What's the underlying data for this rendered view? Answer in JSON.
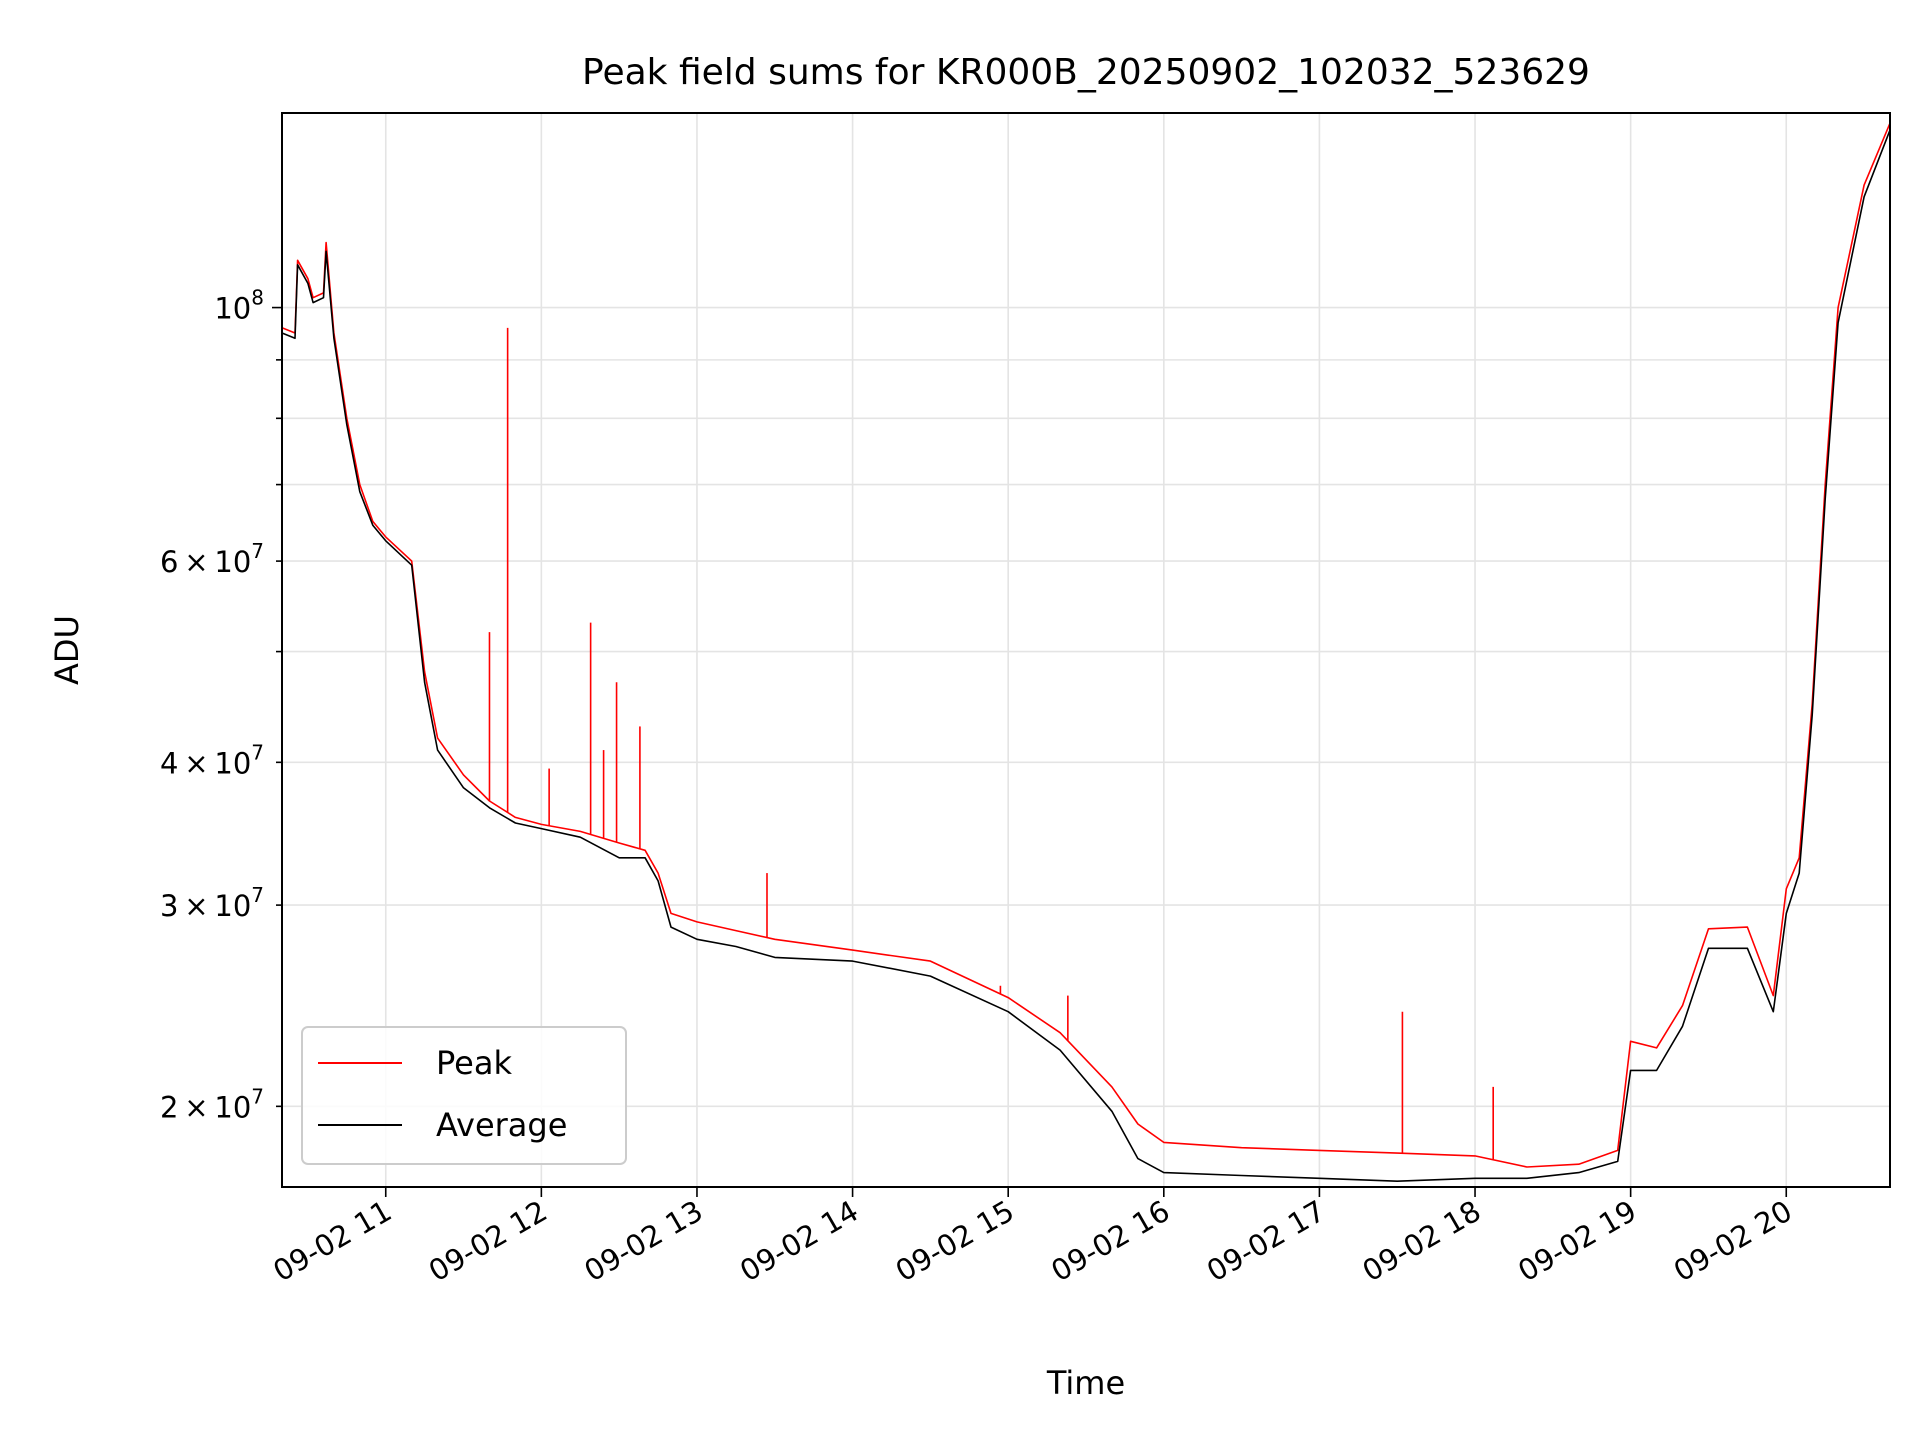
{
  "chart_data": {
    "type": "line",
    "title": "Peak field sums for KR000B_20250902_102032_523629",
    "xlabel": "Time",
    "ylabel": "ADU",
    "y_scale": "log",
    "ylim": [
      17000000,
      148000000
    ],
    "xlim": [
      "2025-09-02 10:20",
      "2025-09-02 20:40"
    ],
    "grid": true,
    "legend_position": "lower-left",
    "x_ticks": [
      {
        "t": "2025-09-02 11:00",
        "label": "09-02 11"
      },
      {
        "t": "2025-09-02 12:00",
        "label": "09-02 12"
      },
      {
        "t": "2025-09-02 13:00",
        "label": "09-02 13"
      },
      {
        "t": "2025-09-02 14:00",
        "label": "09-02 14"
      },
      {
        "t": "2025-09-02 15:00",
        "label": "09-02 15"
      },
      {
        "t": "2025-09-02 16:00",
        "label": "09-02 16"
      },
      {
        "t": "2025-09-02 17:00",
        "label": "09-02 17"
      },
      {
        "t": "2025-09-02 18:00",
        "label": "09-02 18"
      },
      {
        "t": "2025-09-02 19:00",
        "label": "09-02 19"
      },
      {
        "t": "2025-09-02 20:00",
        "label": "09-02 20"
      }
    ],
    "y_major_ticks": [
      {
        "value": 100000000,
        "mantissa": "",
        "exp": "8"
      }
    ],
    "y_minor_ticks": [
      {
        "value": 20000000,
        "mantissa": "2",
        "exp": "7"
      },
      {
        "value": 30000000,
        "mantissa": "3",
        "exp": "7"
      },
      {
        "value": 40000000,
        "mantissa": "4",
        "exp": "7"
      },
      {
        "value": 50000000,
        "mantissa": "",
        "exp": ""
      },
      {
        "value": 60000000,
        "mantissa": "6",
        "exp": "7"
      },
      {
        "value": 70000000,
        "mantissa": "",
        "exp": ""
      },
      {
        "value": 80000000,
        "mantissa": "",
        "exp": ""
      },
      {
        "value": 90000000,
        "mantissa": "",
        "exp": ""
      }
    ],
    "series": [
      {
        "name": "Peak",
        "color": "#ff0000",
        "x": [
          "2025-09-02 10:20",
          "2025-09-02 10:25",
          "2025-09-02 10:26",
          "2025-09-02 10:30",
          "2025-09-02 10:32",
          "2025-09-02 10:36",
          "2025-09-02 10:37",
          "2025-09-02 10:40",
          "2025-09-02 10:45",
          "2025-09-02 10:50",
          "2025-09-02 10:55",
          "2025-09-02 11:00",
          "2025-09-02 11:10",
          "2025-09-02 11:15",
          "2025-09-02 11:20",
          "2025-09-02 11:30",
          "2025-09-02 11:40",
          "2025-09-02 11:50",
          "2025-09-02 12:00",
          "2025-09-02 12:15",
          "2025-09-02 12:30",
          "2025-09-02 12:40",
          "2025-09-02 12:45",
          "2025-09-02 12:50",
          "2025-09-02 13:00",
          "2025-09-02 13:15",
          "2025-09-02 13:30",
          "2025-09-02 14:00",
          "2025-09-02 14:30",
          "2025-09-02 15:00",
          "2025-09-02 15:20",
          "2025-09-02 15:40",
          "2025-09-02 15:50",
          "2025-09-02 16:00",
          "2025-09-02 16:30",
          "2025-09-02 17:00",
          "2025-09-02 17:30",
          "2025-09-02 18:00",
          "2025-09-02 18:20",
          "2025-09-02 18:40",
          "2025-09-02 18:55",
          "2025-09-02 19:00",
          "2025-09-02 19:10",
          "2025-09-02 19:20",
          "2025-09-02 19:30",
          "2025-09-02 19:45",
          "2025-09-02 19:55",
          "2025-09-02 20:00",
          "2025-09-02 20:05",
          "2025-09-02 20:10",
          "2025-09-02 20:15",
          "2025-09-02 20:20",
          "2025-09-02 20:30",
          "2025-09-02 20:40"
        ],
        "y": [
          96000000,
          95000000,
          110000000,
          106000000,
          102000000,
          103000000,
          114000000,
          95000000,
          80000000,
          70000000,
          65000000,
          63000000,
          60000000,
          48000000,
          42000000,
          39000000,
          37000000,
          35800000,
          35300000,
          34800000,
          34000000,
          33500000,
          32000000,
          29500000,
          29000000,
          28500000,
          28000000,
          27400000,
          26800000,
          24900000,
          23200000,
          20800000,
          19300000,
          18600000,
          18400000,
          18300000,
          18200000,
          18100000,
          17700000,
          17800000,
          18300000,
          22800000,
          22500000,
          24500000,
          28600000,
          28700000,
          25000000,
          31000000,
          33000000,
          45000000,
          70000000,
          100000000,
          128000000,
          145000000
        ]
      },
      {
        "name": "Average",
        "color": "#000000",
        "x": [
          "2025-09-02 10:20",
          "2025-09-02 10:25",
          "2025-09-02 10:26",
          "2025-09-02 10:30",
          "2025-09-02 10:32",
          "2025-09-02 10:36",
          "2025-09-02 10:37",
          "2025-09-02 10:40",
          "2025-09-02 10:45",
          "2025-09-02 10:50",
          "2025-09-02 10:55",
          "2025-09-02 11:00",
          "2025-09-02 11:10",
          "2025-09-02 11:15",
          "2025-09-02 11:20",
          "2025-09-02 11:30",
          "2025-09-02 11:40",
          "2025-09-02 11:50",
          "2025-09-02 12:00",
          "2025-09-02 12:15",
          "2025-09-02 12:30",
          "2025-09-02 12:40",
          "2025-09-02 12:45",
          "2025-09-02 12:50",
          "2025-09-02 13:00",
          "2025-09-02 13:15",
          "2025-09-02 13:30",
          "2025-09-02 14:00",
          "2025-09-02 14:30",
          "2025-09-02 15:00",
          "2025-09-02 15:20",
          "2025-09-02 15:40",
          "2025-09-02 15:50",
          "2025-09-02 16:00",
          "2025-09-02 16:30",
          "2025-09-02 17:00",
          "2025-09-02 17:30",
          "2025-09-02 18:00",
          "2025-09-02 18:20",
          "2025-09-02 18:40",
          "2025-09-02 18:55",
          "2025-09-02 19:00",
          "2025-09-02 19:10",
          "2025-09-02 19:20",
          "2025-09-02 19:30",
          "2025-09-02 19:45",
          "2025-09-02 19:55",
          "2025-09-02 20:00",
          "2025-09-02 20:05",
          "2025-09-02 20:10",
          "2025-09-02 20:15",
          "2025-09-02 20:20",
          "2025-09-02 20:30",
          "2025-09-02 20:40"
        ],
        "y": [
          95000000,
          94000000,
          109000000,
          105000000,
          101000000,
          102000000,
          112000000,
          94000000,
          79000000,
          69000000,
          64500000,
          62500000,
          59500000,
          47000000,
          41000000,
          38000000,
          36500000,
          35400000,
          35000000,
          34400000,
          33000000,
          33000000,
          31500000,
          28700000,
          28000000,
          27600000,
          27000000,
          26800000,
          26000000,
          24200000,
          22400000,
          19800000,
          18000000,
          17500000,
          17400000,
          17300000,
          17200000,
          17300000,
          17300000,
          17500000,
          17900000,
          21500000,
          21500000,
          23500000,
          27500000,
          27500000,
          24200000,
          29500000,
          32000000,
          44000000,
          68000000,
          97000000,
          125000000,
          143000000
        ]
      }
    ],
    "spikes": {
      "series": "Peak",
      "x": [
        "2025-09-02 11:40",
        "2025-09-02 11:47",
        "2025-09-02 12:03",
        "2025-09-02 12:19",
        "2025-09-02 12:24",
        "2025-09-02 12:29",
        "2025-09-02 12:38",
        "2025-09-02 13:27",
        "2025-09-02 14:57",
        "2025-09-02 15:23",
        "2025-09-02 17:32",
        "2025-09-02 18:07"
      ],
      "y": [
        52000000,
        96000000,
        39500000,
        53000000,
        41000000,
        47000000,
        43000000,
        32000000,
        25500000,
        25000000,
        24200000,
        20800000
      ]
    }
  }
}
